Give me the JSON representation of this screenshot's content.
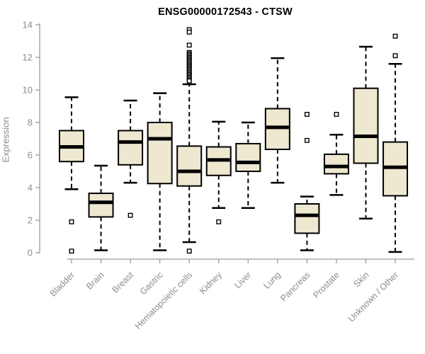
{
  "chart_data": {
    "type": "boxplot",
    "title": "ENSG00000172543 - CTSW",
    "ylabel": "Expression",
    "xlabel": "",
    "ylim": [
      0,
      14
    ],
    "yticks": [
      0,
      2,
      4,
      6,
      8,
      10,
      12,
      14
    ],
    "grid": false,
    "legend": "none",
    "categories": [
      "Bladder",
      "Brain",
      "Breast",
      "Gastric",
      "Hematopoietic cells",
      "Kidney",
      "Liver",
      "Lung",
      "Pancreas",
      "Prostate",
      "Skin",
      "Unknown / Other"
    ],
    "boxes": [
      {
        "category": "Bladder",
        "whisker_low": 3.9,
        "q1": 5.6,
        "median": 6.5,
        "q3": 7.5,
        "whisker_high": 9.55,
        "outliers": [
          1.9,
          0.1
        ]
      },
      {
        "category": "Brain",
        "whisker_low": 0.15,
        "q1": 2.2,
        "median": 3.1,
        "q3": 3.65,
        "whisker_high": 5.35,
        "outliers": []
      },
      {
        "category": "Breast",
        "whisker_low": 4.3,
        "q1": 5.4,
        "median": 6.8,
        "q3": 7.5,
        "whisker_high": 9.35,
        "outliers": [
          2.3
        ]
      },
      {
        "category": "Gastric",
        "whisker_low": 0.15,
        "q1": 4.25,
        "median": 7.0,
        "q3": 8.0,
        "whisker_high": 9.8,
        "outliers": []
      },
      {
        "category": "Hematopoietic cells",
        "whisker_low": 0.65,
        "q1": 4.1,
        "median": 5.0,
        "q3": 6.55,
        "whisker_high": 10.35,
        "outliers": [
          13.7,
          13.55,
          12.75,
          12.3,
          12.22,
          12.14,
          12.06,
          11.98,
          11.9,
          11.82,
          11.74,
          11.66,
          11.58,
          11.5,
          11.42,
          11.34,
          11.26,
          11.18,
          11.1,
          11.02,
          10.94,
          10.86,
          10.78,
          10.7,
          10.62,
          10.55,
          0.1
        ]
      },
      {
        "category": "Kidney",
        "whisker_low": 2.75,
        "q1": 4.75,
        "median": 5.7,
        "q3": 6.5,
        "whisker_high": 8.05,
        "outliers": [
          1.9
        ]
      },
      {
        "category": "Liver",
        "whisker_low": 2.75,
        "q1": 5.0,
        "median": 5.55,
        "q3": 6.7,
        "whisker_high": 8.0,
        "outliers": []
      },
      {
        "category": "Lung",
        "whisker_low": 4.3,
        "q1": 6.35,
        "median": 7.7,
        "q3": 8.85,
        "whisker_high": 11.95,
        "outliers": []
      },
      {
        "category": "Pancreas",
        "whisker_low": 0.15,
        "q1": 1.2,
        "median": 2.3,
        "q3": 3.0,
        "whisker_high": 3.45,
        "outliers": [
          8.5,
          6.9
        ]
      },
      {
        "category": "Prostate",
        "whisker_low": 3.55,
        "q1": 4.85,
        "median": 5.3,
        "q3": 6.05,
        "whisker_high": 7.25,
        "outliers": [
          8.5
        ]
      },
      {
        "category": "Skin",
        "whisker_low": 2.1,
        "q1": 5.5,
        "median": 7.15,
        "q3": 10.1,
        "whisker_high": 12.65,
        "outliers": []
      },
      {
        "category": "Unknown / Other",
        "whisker_low": 0.05,
        "q1": 3.5,
        "median": 5.25,
        "q3": 6.8,
        "whisker_high": 11.6,
        "outliers": [
          13.3,
          12.1
        ]
      }
    ],
    "colors": {
      "box_fill": "#EEE8D0",
      "box_border": "#000000",
      "median": "#000000",
      "whisker": "#000000",
      "outlier_fill": "#ffffff",
      "axis_line": "#9a9a9a",
      "tick_label": "#8c8c8c",
      "title": "#000000",
      "background": "#ffffff"
    }
  }
}
